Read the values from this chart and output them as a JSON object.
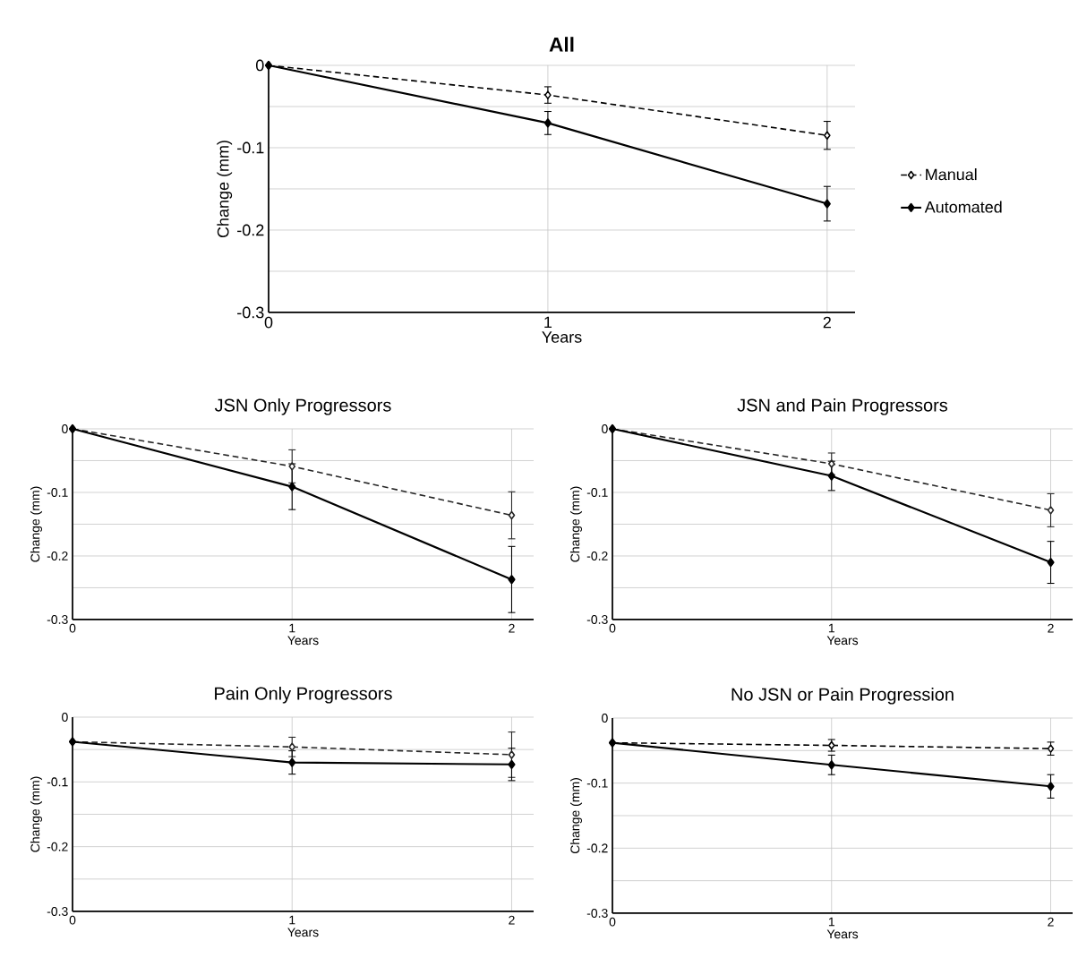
{
  "chart_data": [
    {
      "type": "line",
      "title": "All",
      "xlabel": "Years",
      "ylabel": "Change (mm)",
      "x": [
        0,
        1,
        2
      ],
      "xlim": [
        0,
        2.1
      ],
      "xticks": [
        0,
        1,
        2
      ],
      "ylim": [
        -0.3,
        0
      ],
      "yticks": [
        0,
        {
          "value": -0.05,
          "label": null
        },
        -0.1,
        {
          "value": -0.15,
          "label": null
        },
        -0.2,
        {
          "value": -0.25,
          "label": null
        },
        -0.3
      ],
      "grid": true,
      "legend": "right",
      "marker": "diamond",
      "series": [
        {
          "name": "Manual",
          "color": "#000000",
          "line_style": "dashed",
          "values": [
            0,
            -0.036,
            -0.085
          ],
          "errors": [
            null,
            0.01,
            0.017
          ]
        },
        {
          "name": "Automated",
          "color": "#000000",
          "line_style": "solid",
          "values": [
            0,
            -0.07,
            -0.168
          ],
          "errors": [
            null,
            0.014,
            0.021
          ]
        }
      ]
    },
    {
      "type": "line",
      "title": "JSN Only Progressors",
      "xlabel": "Years",
      "ylabel": "Change (mm)",
      "x": [
        0,
        1,
        2
      ],
      "xlim": [
        0,
        2.1
      ],
      "xticks": [
        0,
        1,
        2
      ],
      "ylim": [
        -0.3,
        0
      ],
      "yticks": [
        0,
        {
          "value": -0.05,
          "label": null
        },
        -0.1,
        {
          "value": -0.15,
          "label": null
        },
        -0.2,
        {
          "value": -0.25,
          "label": null
        },
        -0.3
      ],
      "grid": true,
      "marker": "diamond",
      "series": [
        {
          "color": "#262626",
          "line_style": "dashed",
          "values": [
            0,
            -0.059,
            -0.136
          ],
          "errors": [
            null,
            0.026,
            0.037
          ]
        },
        {
          "color": "#000000",
          "line_style": "solid",
          "values": [
            0,
            -0.091,
            -0.237
          ],
          "errors": [
            null,
            0.036,
            0.052
          ]
        }
      ]
    },
    {
      "type": "line",
      "title": "JSN and Pain Progressors",
      "xlabel": "Years",
      "ylabel": "Change (mm)",
      "x": [
        0,
        1,
        2
      ],
      "xlim": [
        0,
        2.1
      ],
      "xticks": [
        0,
        1,
        2
      ],
      "ylim": [
        -0.3,
        0
      ],
      "yticks": [
        0,
        {
          "value": -0.05,
          "label": null
        },
        -0.1,
        {
          "value": -0.15,
          "label": null
        },
        -0.2,
        {
          "value": -0.25,
          "label": null
        },
        -0.3
      ],
      "grid": true,
      "marker": "diamond",
      "series": [
        {
          "color": "#262626",
          "line_style": "dashed",
          "values": [
            0,
            -0.055,
            -0.128
          ],
          "errors": [
            null,
            0.017,
            0.026
          ]
        },
        {
          "color": "#000000",
          "line_style": "solid",
          "values": [
            0,
            -0.074,
            -0.21
          ],
          "errors": [
            null,
            0.023,
            0.033
          ]
        }
      ]
    },
    {
      "type": "line",
      "title": "Pain Only Progressors",
      "xlabel": "Years",
      "ylabel": "Change (mm)",
      "x": [
        0,
        1,
        2
      ],
      "xlim": [
        0,
        2.1
      ],
      "xticks": [
        0,
        1,
        2
      ],
      "ylim": [
        -0.3,
        0
      ],
      "yticks": [
        0,
        {
          "value": -0.05,
          "label": null
        },
        -0.1,
        {
          "value": -0.15,
          "label": null
        },
        -0.2,
        {
          "value": -0.25,
          "label": null
        },
        -0.3
      ],
      "grid": true,
      "marker": "diamond",
      "series": [
        {
          "color": "#262626",
          "line_style": "dashed",
          "values": [
            -0.038,
            -0.046,
            -0.058
          ],
          "errors": [
            null,
            0.015,
            0.035
          ]
        },
        {
          "color": "#000000",
          "line_style": "solid",
          "values": [
            -0.038,
            -0.07,
            -0.073
          ],
          "errors": [
            null,
            0.018,
            0.025
          ]
        }
      ]
    },
    {
      "type": "line",
      "title": "No JSN or Pain Progression",
      "xlabel": "Years",
      "ylabel": "Change (mm)",
      "x": [
        0,
        1,
        2
      ],
      "xlim": [
        0,
        2.1
      ],
      "xticks": [
        0,
        1,
        2
      ],
      "ylim": [
        -0.3,
        0
      ],
      "yticks": [
        0,
        {
          "value": -0.05,
          "label": null
        },
        -0.1,
        {
          "value": -0.15,
          "label": null
        },
        -0.2,
        {
          "value": -0.25,
          "label": null
        },
        -0.3
      ],
      "grid": true,
      "marker": "diamond",
      "series": [
        {
          "color": "#000000",
          "line_style": "dashed",
          "values": [
            -0.038,
            -0.042,
            -0.047
          ],
          "errors": [
            null,
            0.009,
            0.01
          ]
        },
        {
          "color": "#000000",
          "line_style": "solid",
          "values": [
            -0.038,
            -0.072,
            -0.105
          ],
          "errors": [
            null,
            0.015,
            0.018
          ]
        }
      ]
    }
  ]
}
